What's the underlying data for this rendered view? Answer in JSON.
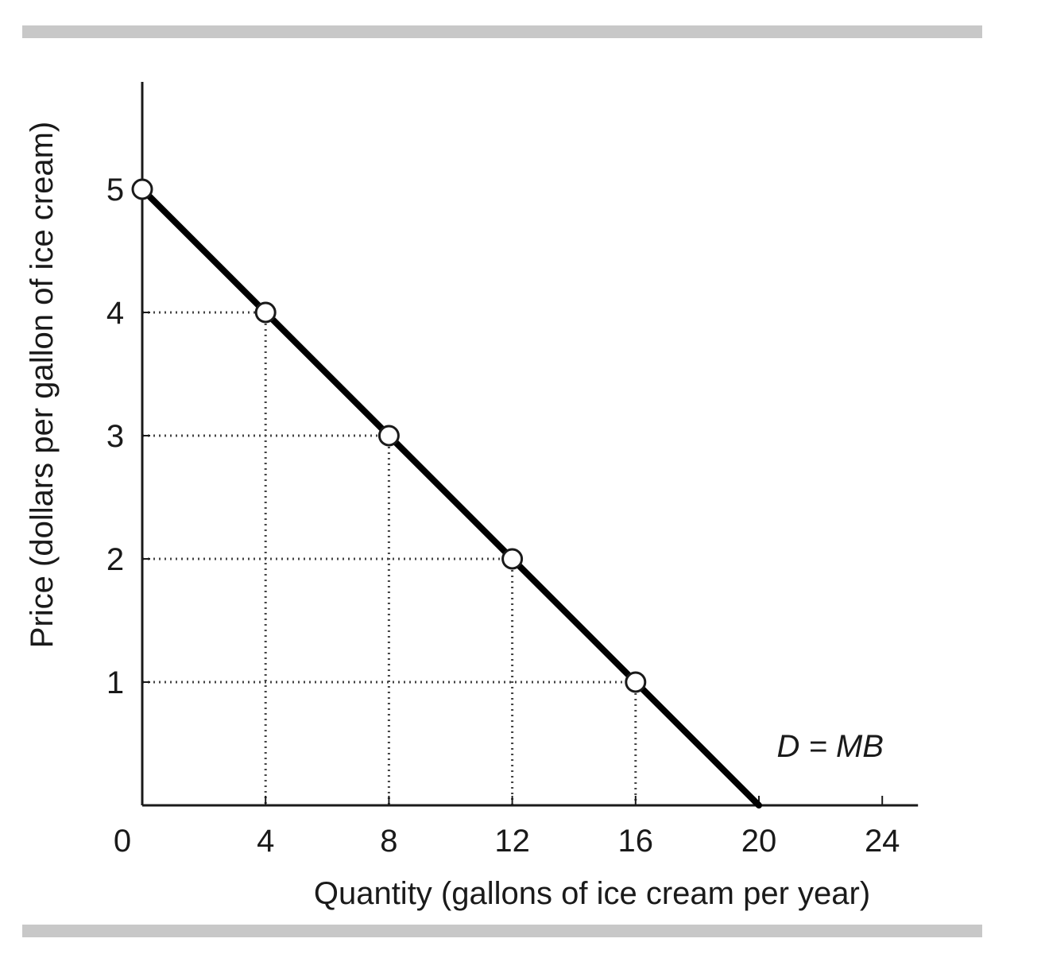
{
  "chart_data": {
    "type": "line",
    "title": "",
    "xlabel": "Quantity (gallons of ice cream per year)",
    "ylabel": "Price (dollars per gallon of ice cream)",
    "xlim": [
      0,
      24
    ],
    "ylim": [
      0,
      5
    ],
    "x_ticks": [
      "0",
      "4",
      "8",
      "12",
      "16",
      "20",
      "24"
    ],
    "y_ticks": [
      "1",
      "2",
      "3",
      "4",
      "5"
    ],
    "series": [
      {
        "name": "D = MB",
        "x": [
          0,
          4,
          8,
          12,
          16,
          20
        ],
        "y": [
          5,
          4,
          3,
          2,
          1,
          0
        ],
        "marker_x": [
          0,
          4,
          8,
          12,
          16
        ],
        "marker_y": [
          5,
          4,
          3,
          2,
          1
        ]
      }
    ],
    "curve_label": "D = MB",
    "guides": true,
    "legend": "none"
  }
}
